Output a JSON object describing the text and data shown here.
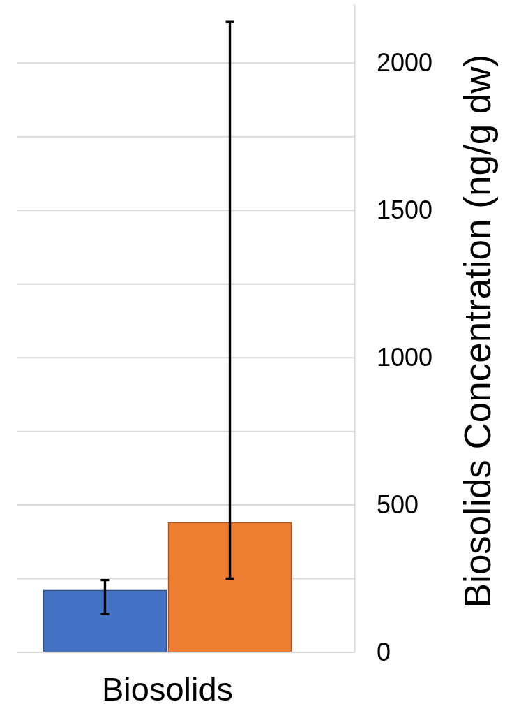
{
  "chart_data": {
    "type": "bar",
    "categories": [
      "Biosolids"
    ],
    "series": [
      {
        "color": "#4472c4",
        "values": [
          210
        ],
        "errors": [
          [
            130,
            245
          ]
        ]
      },
      {
        "color": "#ed7d31",
        "values": [
          440
        ],
        "errors": [
          [
            250,
            2140
          ]
        ]
      }
    ],
    "ylabel": "Biosolids Concentration (ng/g dw)",
    "ylim": [
      0,
      2200
    ],
    "yticks": [
      0,
      {
        "value": 250,
        "label": null
      },
      500,
      {
        "value": 750,
        "label": null
      },
      1000,
      {
        "value": 1250,
        "label": null
      },
      1500,
      {
        "value": 1750,
        "label": null
      },
      2000
    ],
    "grid": true
  }
}
